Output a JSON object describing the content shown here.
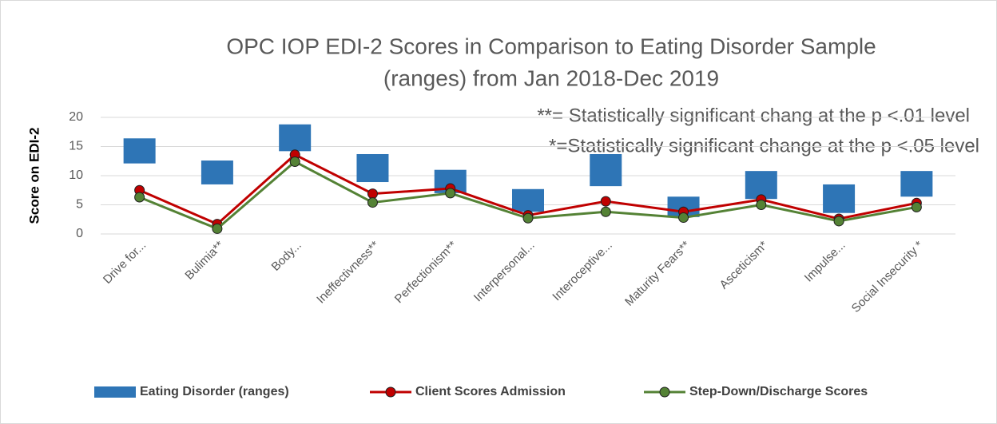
{
  "chart_data": {
    "type": "combo",
    "title": [
      "OPC IOP EDI-2 Scores in Comparison to Eating Disorder Sample",
      "(ranges) from Jan 2018-Dec 2019"
    ],
    "annotations": [
      "**= Statistically significant chang at the p <.01 level",
      "*=Statistically significant change at the p <.05 level"
    ],
    "y_label": "Score on EDI-2",
    "categories": [
      "Drive for...",
      "Bulimia**",
      "Body...",
      "Ineffectivness**",
      "Perfectionism**",
      "Interpersonal...",
      "Interoceptive...",
      "Maturity Fears**",
      "Asceticism*",
      "Impulse...",
      "Social Insecurity *"
    ],
    "ylim": [
      0,
      20
    ],
    "yticks": [
      0,
      5,
      10,
      15,
      20
    ],
    "grid": true,
    "legend": "bottom",
    "series": [
      {
        "name": "Eating Disorder (ranges)",
        "type": "range-bar",
        "color": "#2e75b6",
        "low": [
          12.1,
          8.5,
          14.2,
          8.9,
          7.0,
          3.8,
          8.2,
          2.9,
          6.0,
          3.6,
          6.4
        ],
        "high": [
          16.4,
          12.6,
          18.8,
          13.7,
          11.0,
          7.7,
          13.7,
          6.4,
          10.8,
          8.5,
          10.8
        ]
      },
      {
        "name": "Client Scores Admission",
        "type": "line",
        "color": "#c00000",
        "values": [
          7.5,
          1.7,
          13.6,
          6.9,
          7.8,
          3.2,
          5.6,
          3.8,
          5.9,
          2.6,
          5.3
        ]
      },
      {
        "name": "Step-Down/Discharge Scores",
        "type": "line",
        "color": "#548235",
        "values": [
          6.3,
          0.9,
          12.4,
          5.4,
          7.0,
          2.7,
          3.8,
          2.8,
          5.0,
          2.2,
          4.6
        ]
      }
    ]
  }
}
